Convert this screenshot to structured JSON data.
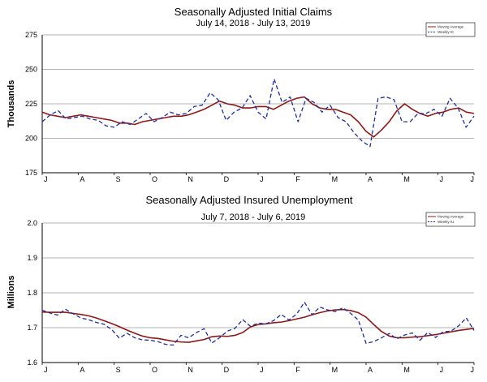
{
  "colors": {
    "moving_average": "#8b1a1a",
    "weekly": "#1f2f9a",
    "axis": "#000000",
    "grid": "#9a9a9a"
  },
  "chart_data": [
    {
      "type": "line",
      "title": "Seasonally Adjusted Initial Claims",
      "subtitle": "July 14, 2018 - July 13, 2019",
      "xlabel": "",
      "ylabel": "Thousands",
      "ylim": [
        175,
        275
      ],
      "yticks": [
        "175",
        "200",
        "225",
        "250",
        "275"
      ],
      "month_labels": [
        "J",
        "A",
        "S",
        "O",
        "N",
        "D",
        "J",
        "F",
        "M",
        "A",
        "M",
        "J",
        "J"
      ],
      "grid": true,
      "legend_position": "top-right",
      "series": [
        {
          "name": "Moving Average",
          "style": "solid",
          "values": [
            219,
            217,
            216,
            215,
            216,
            217,
            216,
            215,
            214,
            213,
            211,
            211,
            210,
            212,
            213,
            214,
            215,
            216,
            216,
            217,
            219,
            221,
            224,
            227,
            225,
            224,
            222,
            222,
            223,
            223,
            221,
            224,
            227,
            229,
            230,
            225,
            222,
            221,
            221,
            219,
            217,
            212,
            205,
            201,
            206,
            212,
            220,
            225,
            221,
            218,
            216,
            218,
            219,
            221,
            222,
            219,
            218
          ]
        },
        {
          "name": "Weekly IC",
          "style": "dashed",
          "values": [
            212,
            217,
            220,
            214,
            215,
            216,
            214,
            213,
            209,
            208,
            212,
            210,
            214,
            218,
            212,
            215,
            219,
            217,
            218,
            223,
            224,
            233,
            228,
            213,
            219,
            222,
            231,
            219,
            214,
            243,
            226,
            230,
            212,
            229,
            226,
            219,
            224,
            215,
            212,
            204,
            198,
            194,
            229,
            230,
            228,
            212,
            212,
            218,
            218,
            221,
            216,
            229,
            222,
            208,
            216
          ]
        }
      ]
    },
    {
      "type": "line",
      "title": "Seasonally Adjusted Insured Unemployment",
      "subtitle": "July 7, 2018 - July 6, 2019",
      "xlabel": "",
      "ylabel": "Millions",
      "ylim": [
        1.6,
        2.0
      ],
      "yticks": [
        "1.6",
        "1.7",
        "1.8",
        "1.9",
        "2.0"
      ],
      "month_labels": [
        "J",
        "A",
        "S",
        "O",
        "N",
        "D",
        "J",
        "F",
        "M",
        "A",
        "M",
        "J",
        "J"
      ],
      "grid": true,
      "legend_position": "top-right",
      "series": [
        {
          "name": "Moving Average",
          "style": "solid",
          "values": [
            1.745,
            1.744,
            1.744,
            1.744,
            1.741,
            1.738,
            1.734,
            1.728,
            1.72,
            1.712,
            1.703,
            1.693,
            1.684,
            1.676,
            1.671,
            1.669,
            1.665,
            1.661,
            1.659,
            1.658,
            1.662,
            1.666,
            1.674,
            1.676,
            1.675,
            1.678,
            1.686,
            1.702,
            1.709,
            1.711,
            1.714,
            1.716,
            1.72,
            1.725,
            1.73,
            1.737,
            1.743,
            1.748,
            1.751,
            1.752,
            1.749,
            1.743,
            1.73,
            1.709,
            1.689,
            1.676,
            1.671,
            1.671,
            1.673,
            1.674,
            1.677,
            1.68,
            1.684,
            1.688,
            1.692,
            1.695,
            1.698
          ]
        },
        {
          "name": "Weekly IU",
          "style": "dashed",
          "values": [
            1.75,
            1.742,
            1.736,
            1.753,
            1.74,
            1.728,
            1.723,
            1.715,
            1.71,
            1.695,
            1.67,
            1.684,
            1.671,
            1.665,
            1.664,
            1.66,
            1.652,
            1.65,
            1.678,
            1.671,
            1.686,
            1.697,
            1.656,
            1.671,
            1.69,
            1.698,
            1.723,
            1.704,
            1.713,
            1.711,
            1.72,
            1.738,
            1.722,
            1.739,
            1.773,
            1.737,
            1.759,
            1.751,
            1.746,
            1.757,
            1.741,
            1.722,
            1.655,
            1.66,
            1.671,
            1.683,
            1.668,
            1.679,
            1.685,
            1.664,
            1.686,
            1.672,
            1.688,
            1.69,
            1.705,
            1.728,
            1.692
          ]
        }
      ]
    }
  ]
}
